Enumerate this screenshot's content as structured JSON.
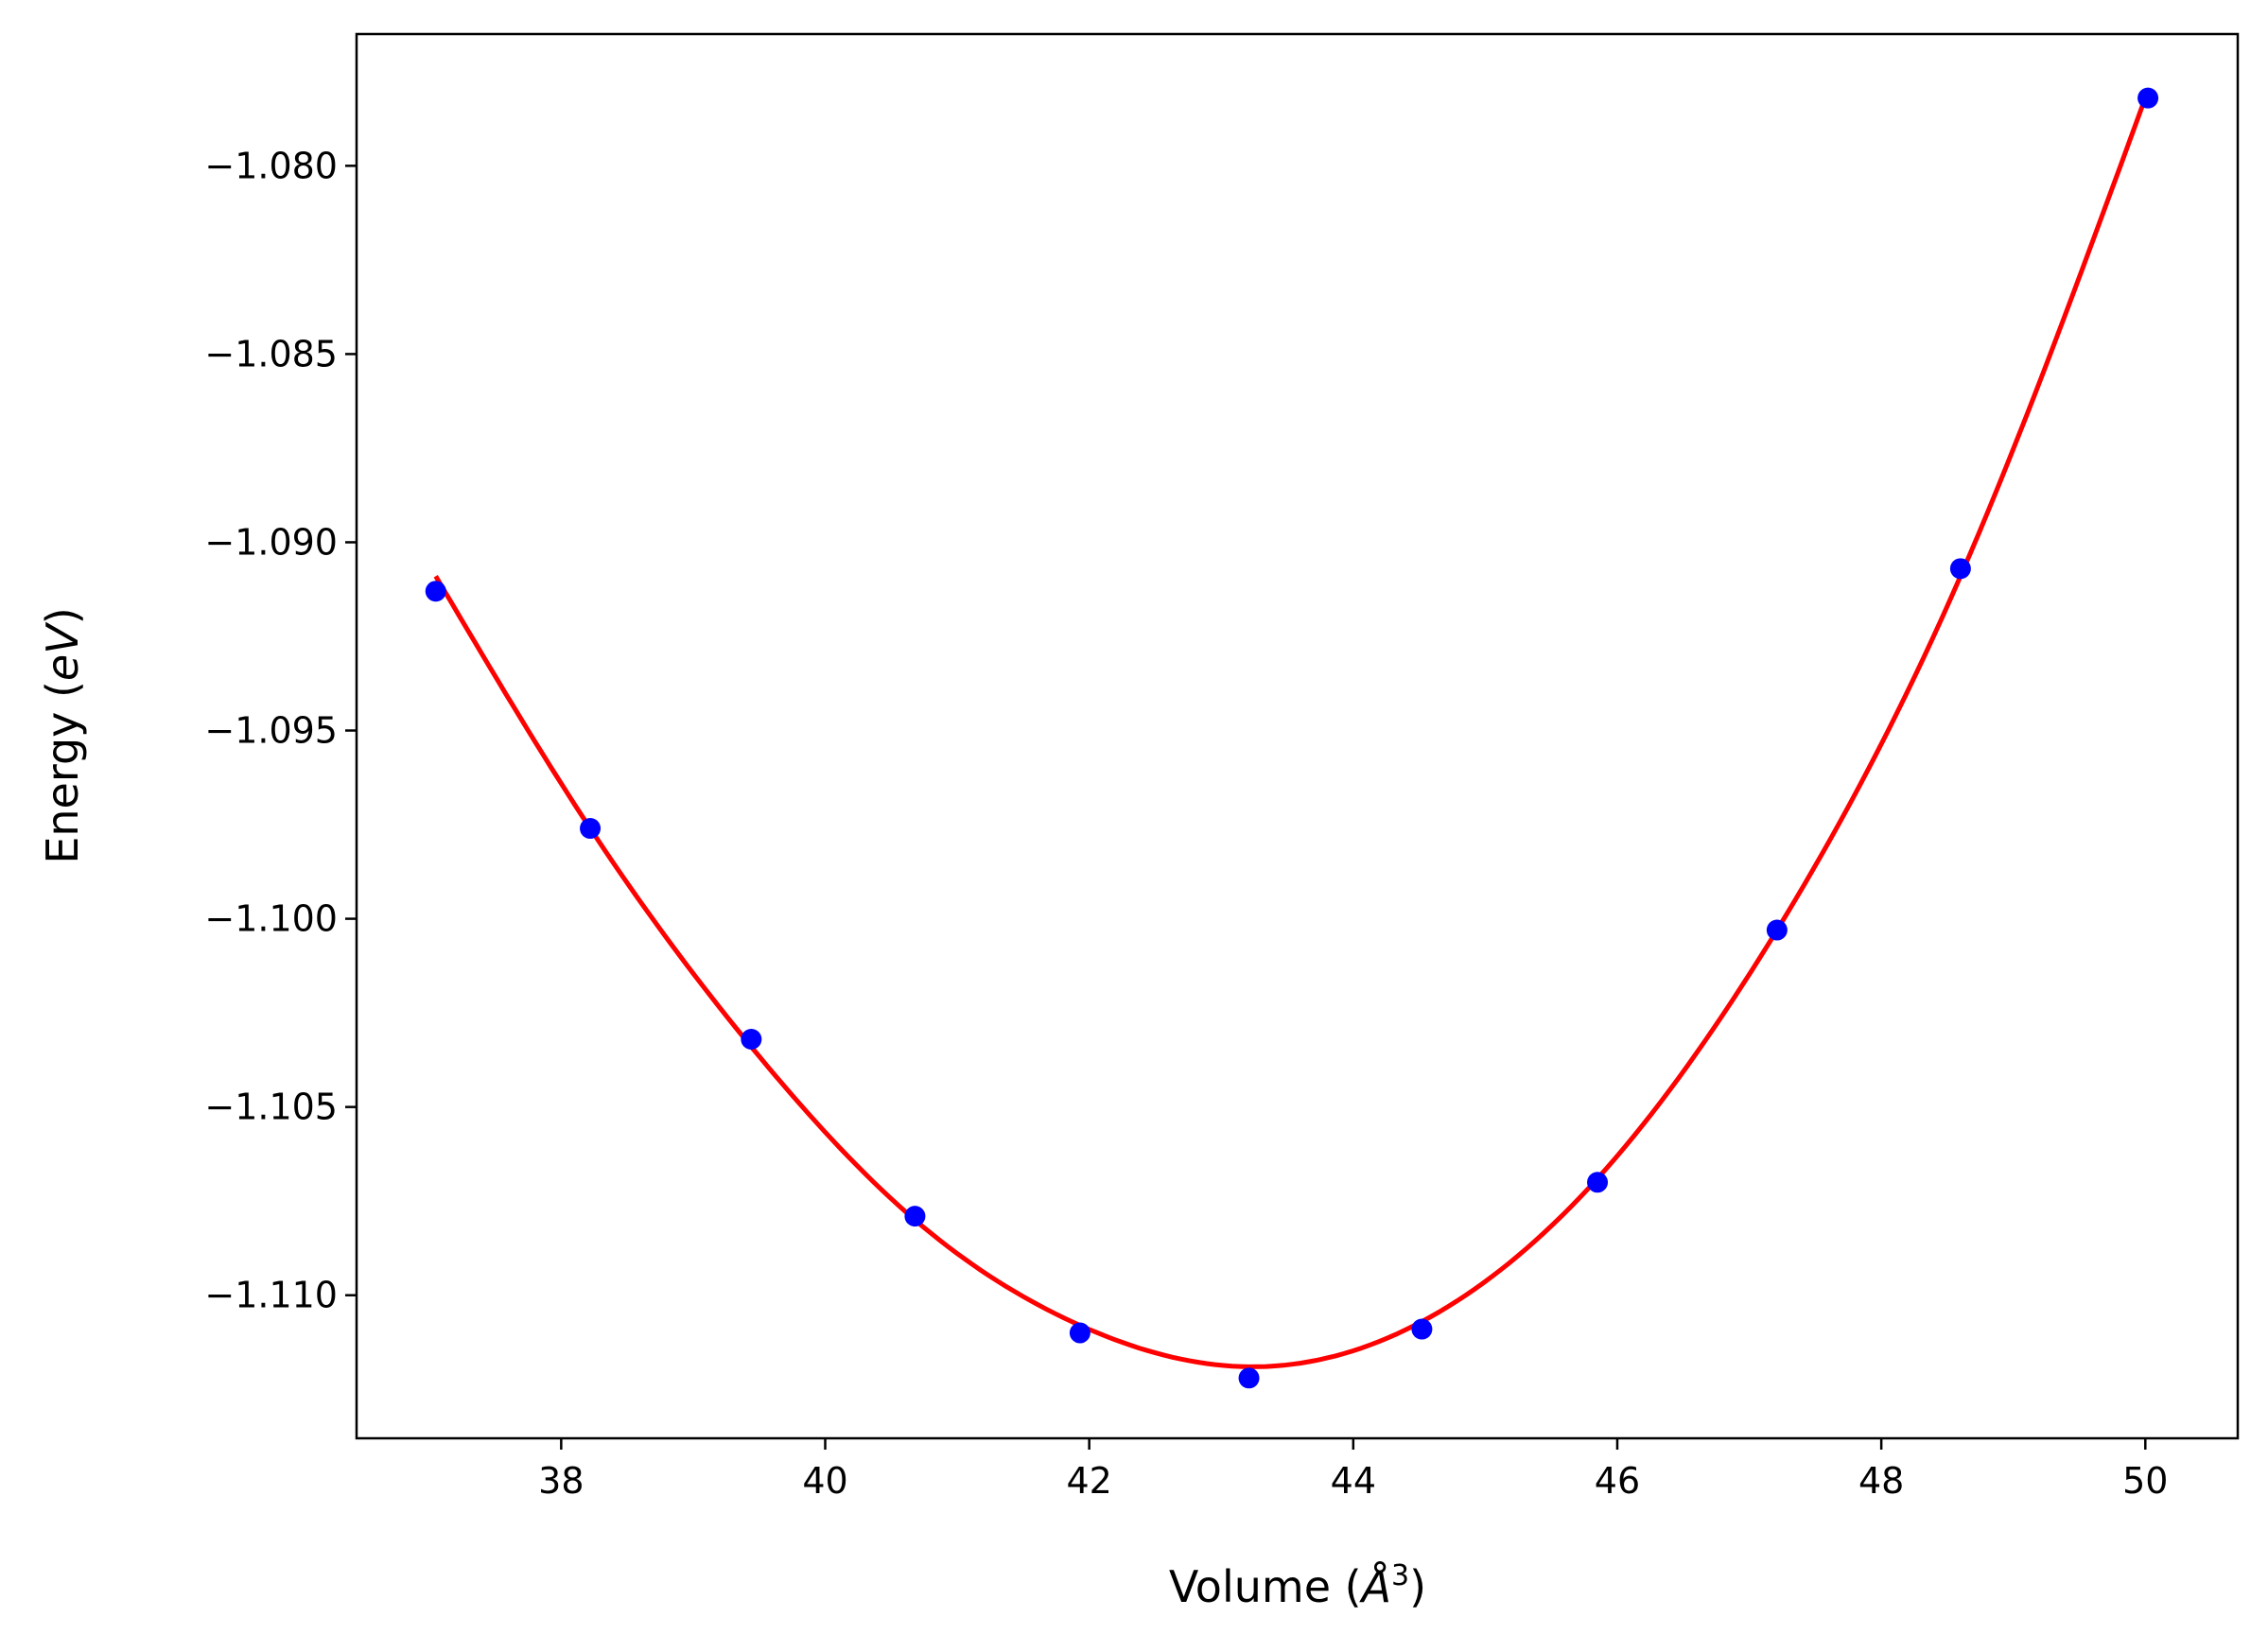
{
  "chart_data": {
    "type": "scatter",
    "title": "",
    "xlabel": {
      "main": "Volume (",
      "italic": "Å",
      "sup": "3",
      "close": ")"
    },
    "ylabel": {
      "main": "Energy (",
      "italic": "eV",
      "close": ")"
    },
    "xlim": [
      36.45,
      50.7
    ],
    "ylim": [
      -1.1138,
      -1.0765
    ],
    "xticks": [
      38,
      40,
      42,
      44,
      46,
      48,
      50
    ],
    "xtick_labels": [
      "38",
      "40",
      "42",
      "44",
      "46",
      "48",
      "50"
    ],
    "yticks": [
      -1.08,
      -1.085,
      -1.09,
      -1.095,
      -1.1,
      -1.105,
      -1.11
    ],
    "ytick_labels": [
      "−1.080",
      "−1.085",
      "−1.090",
      "−1.095",
      "−1.100",
      "−1.105",
      "−1.110"
    ],
    "grid": false,
    "series": [
      {
        "kind": "points",
        "color": "#0000ff",
        "x": [
          37.05,
          38.22,
          39.44,
          40.68,
          41.93,
          43.21,
          44.52,
          45.85,
          47.21,
          48.6,
          50.02
        ],
        "y": [
          -1.0913,
          -1.0976,
          -1.1032,
          -1.1079,
          -1.111,
          -1.1122,
          -1.1109,
          -1.107,
          -1.1003,
          -1.0907,
          -1.0782
        ]
      },
      {
        "kind": "fit-curve",
        "color": "#ff0000",
        "x": [
          37.05,
          38.22,
          39.44,
          40.68,
          41.93,
          43.21,
          44.52,
          45.85,
          47.21,
          48.6,
          50.02
        ],
        "y": [
          -1.0909,
          -1.0976,
          -1.1034,
          -1.108,
          -1.1108,
          -1.1119,
          -1.1107,
          -1.1069,
          -1.1003,
          -1.0909,
          -1.078
        ]
      }
    ]
  }
}
